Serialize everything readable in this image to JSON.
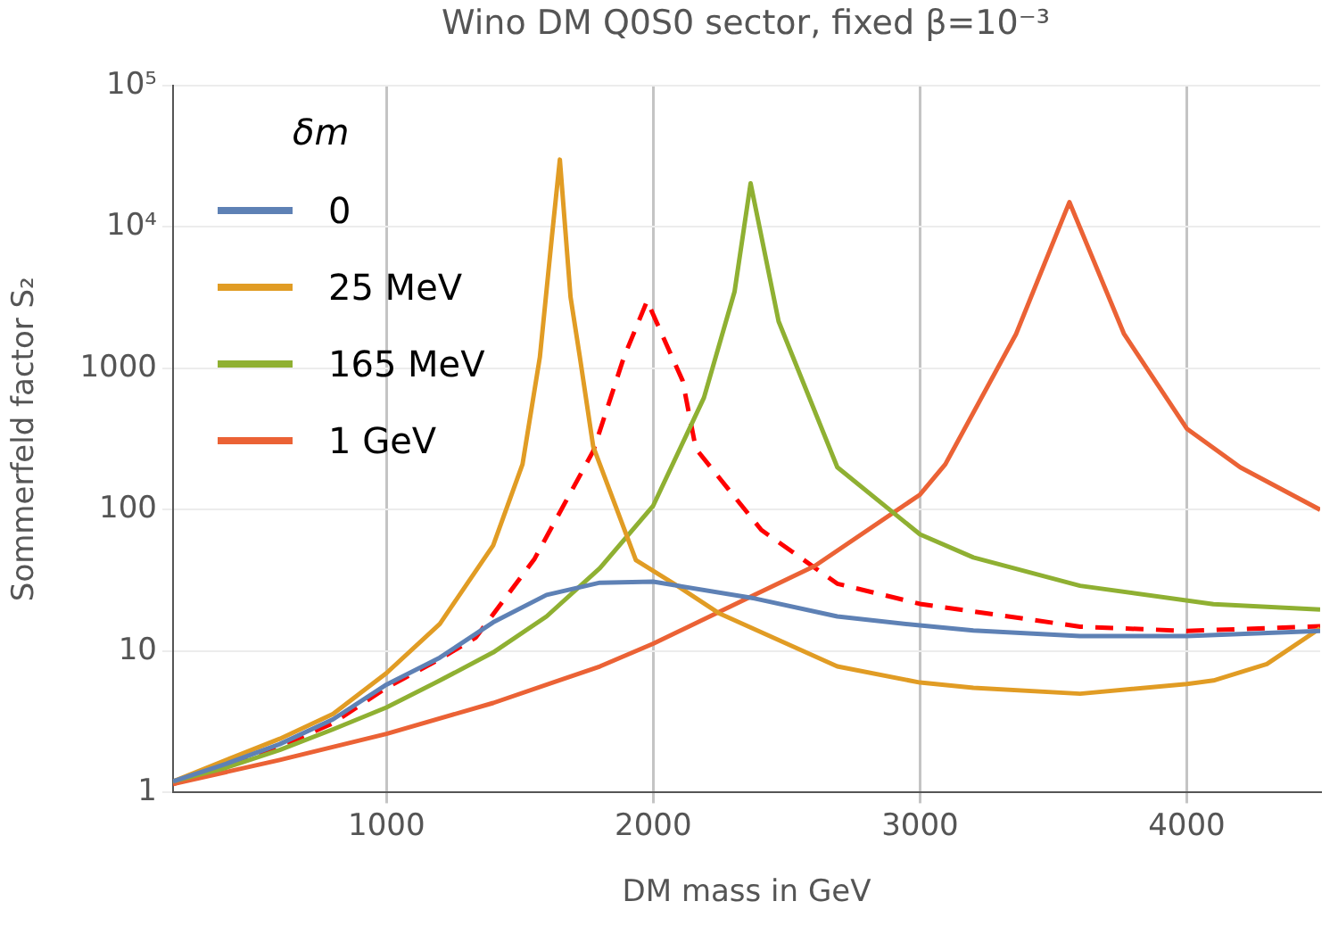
{
  "chart_data": {
    "type": "line",
    "title": "Wino DM Q0S0 sector, fixed β=10⁻³",
    "xlabel": "DM mass in GeV",
    "ylabel": "Sommerfeld factor S₂",
    "legend_title": "δm",
    "legend": "top left",
    "grid": true,
    "log": "y",
    "marker": "none",
    "xlim": [
      200,
      4500
    ],
    "xticks": [
      1000,
      2000,
      3000,
      4000
    ],
    "ylim": [
      1,
      100000
    ],
    "yticks": [
      1,
      10,
      100,
      1000,
      {
        "value": 10000,
        "label": "10⁴"
      },
      {
        "value": 100000,
        "label": "10⁵"
      }
    ],
    "series": [
      {
        "name": "0",
        "color": "#5e81b5",
        "line_style": "solid",
        "x": [
          200,
          400,
          600,
          800,
          1000,
          1200,
          1400,
          1600,
          1800,
          2000,
          2380,
          2690,
          3000,
          3200,
          3600,
          4000,
          4500
        ],
        "values": [
          1.2,
          1.6,
          2.2,
          3.3,
          5.8,
          9.0,
          16,
          25,
          30.5,
          31,
          23.6,
          17.6,
          15.2,
          14,
          12.8,
          12.8,
          13.9
        ]
      },
      {
        "name": "25 MeV",
        "color": "#e19c24",
        "line_style": "solid",
        "x": [
          200,
          400,
          600,
          800,
          1000,
          1200,
          1400,
          1510,
          1575,
          1620,
          1650,
          1690,
          1725,
          1775,
          1935,
          2090,
          2245,
          2690,
          3000,
          3200,
          3600,
          4000,
          4100,
          4300,
          4500
        ],
        "values": [
          1.2,
          1.7,
          2.4,
          3.6,
          7.0,
          15.6,
          56,
          210,
          1200,
          8500,
          30000,
          3200,
          1200,
          280,
          44,
          29,
          18.6,
          7.8,
          6.0,
          5.5,
          5.0,
          5.85,
          6.2,
          8.1,
          14.5
        ]
      },
      {
        "name": "165 MeV",
        "color": "#8fb032",
        "line_style": "solid",
        "x": [
          200,
          400,
          600,
          800,
          1000,
          1200,
          1400,
          1600,
          1800,
          2000,
          2190,
          2305,
          2365,
          2470,
          2690,
          3000,
          3200,
          3600,
          4100,
          4500
        ],
        "values": [
          1.2,
          1.5,
          2.0,
          2.8,
          4.0,
          6.2,
          9.8,
          17.6,
          38.6,
          107,
          620,
          3500,
          20400,
          2150,
          200,
          67,
          46,
          29,
          21.5,
          19.7
        ]
      },
      {
        "name": "1 GeV",
        "color": "#eb6235",
        "line_style": "solid",
        "x": [
          200,
          600,
          1000,
          1400,
          1800,
          2000,
          2380,
          2605,
          3000,
          3095,
          3360,
          3560,
          3765,
          4000,
          4200,
          4500
        ],
        "values": [
          1.15,
          1.7,
          2.6,
          4.3,
          7.8,
          11.3,
          25,
          40,
          128,
          210,
          1750,
          15000,
          1750,
          375,
          200,
          100
        ]
      },
      {
        "color": "#ff0000",
        "line_style": "dashed",
        "x": [
          200,
          400,
          600,
          800,
          1000,
          1200,
          1335,
          1555,
          1775,
          1890,
          1977,
          2110,
          2160,
          2405,
          2690,
          3000,
          3600,
          4000,
          4500
        ],
        "values": [
          1.15,
          1.55,
          2.1,
          3.1,
          5.5,
          8.8,
          12.5,
          45,
          260,
          1200,
          3000,
          820,
          270,
          72,
          30,
          21.6,
          14.9,
          13.9,
          15
        ]
      }
    ]
  }
}
